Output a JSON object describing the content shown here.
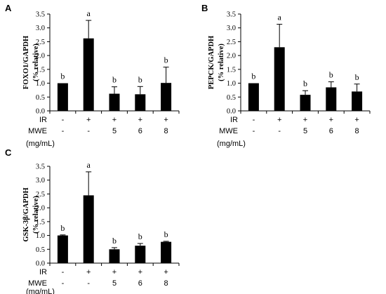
{
  "style": {
    "bar_color": "#000000",
    "axis_color": "#000000"
  },
  "chart_data": [
    {
      "type": "bar",
      "panel": "A",
      "ylabel": [
        "FOXO1/GAPDH",
        "(% relative)"
      ],
      "ylim": [
        0,
        3.5
      ],
      "yticks": [
        "0.0",
        "0.5",
        "1.0",
        "1.5",
        "2.0",
        "2.5",
        "3.0",
        "3.5"
      ],
      "values": [
        1.0,
        2.62,
        0.62,
        0.6,
        1.01
      ],
      "errors": [
        0.0,
        0.65,
        0.25,
        0.28,
        0.57
      ],
      "significance": [
        "b",
        "a",
        "b",
        "b",
        "b"
      ],
      "conditions": {
        "IR": [
          "-",
          "+",
          "+",
          "+",
          "+"
        ],
        "MWE": [
          "-",
          "-",
          "5",
          "6",
          "8"
        ]
      }
    },
    {
      "type": "bar",
      "panel": "B",
      "ylabel": [
        "PEPCK/GAPDH",
        "(% relative)"
      ],
      "ylim": [
        0,
        3.5
      ],
      "yticks": [
        "0.0",
        "0.5",
        "1.0",
        "1.5",
        "2.0",
        "2.5",
        "3.0",
        "3.5"
      ],
      "values": [
        1.0,
        2.3,
        0.58,
        0.85,
        0.7
      ],
      "errors": [
        0.0,
        0.83,
        0.15,
        0.2,
        0.27
      ],
      "significance": [
        "b",
        "a",
        "b",
        "b",
        "b"
      ],
      "conditions": {
        "IR": [
          "-",
          "+",
          "+",
          "+",
          "+"
        ],
        "MWE": [
          "-",
          "-",
          "5",
          "6",
          "8"
        ]
      }
    },
    {
      "type": "bar",
      "panel": "C",
      "ylabel": [
        "GSK-3β/GAPDH",
        "(% relative)"
      ],
      "ylim": [
        0,
        3.5
      ],
      "yticks": [
        "0.0",
        "0.5",
        "1.0",
        "1.5",
        "2.0",
        "2.5",
        "3.0",
        "3.5"
      ],
      "values": [
        1.0,
        2.45,
        0.5,
        0.63,
        0.77
      ],
      "errors": [
        0.02,
        0.85,
        0.06,
        0.08,
        0.02
      ],
      "significance": [
        "b",
        "a",
        "b",
        "b",
        "b"
      ],
      "conditions": {
        "IR": [
          "-",
          "+",
          "+",
          "+",
          "+"
        ],
        "MWE": [
          "-",
          "-",
          "5",
          "6",
          "8"
        ]
      }
    }
  ],
  "labels": {
    "ir": "IR",
    "mwe": "MWE",
    "unit": "(mg/mL)"
  }
}
